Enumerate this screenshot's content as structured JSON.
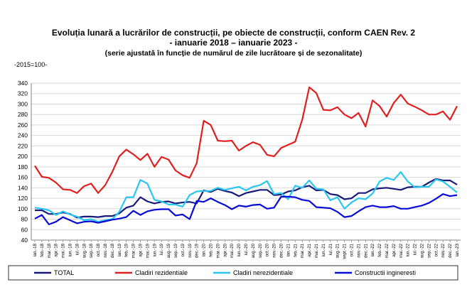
{
  "chart_data": {
    "type": "line",
    "title": "Evoluția lunară a lucrărilor de construcții, pe obiecte de construcții, conform CAEN Rev. 2",
    "subtitle": "- ianuarie 2018 – ianuarie 2023 -",
    "note": "(serie ajustată în funcție de numărul de zile lucrătoare și de sezonalitate)",
    "unit_label": "-2015=100-",
    "ylim": [
      40,
      340
    ],
    "yticks": [
      40,
      60,
      80,
      100,
      120,
      140,
      160,
      180,
      200,
      220,
      240,
      260,
      280,
      300,
      320,
      340
    ],
    "grid": true,
    "legend_position": "bottom",
    "categories": [
      "ian.-18",
      "feb.-18",
      "mar.-18",
      "apr.-18",
      "mai.-18",
      "iun.-18",
      "iul.-18",
      "aug.-18",
      "sep.-18",
      "oct.-18",
      "nov.-18",
      "dec.-18",
      "ian.-19",
      "feb.-19",
      "mar.-19",
      "apr.-19",
      "mai.-19",
      "iun.-19",
      "iul.-19",
      "aug.-19",
      "sep.-19",
      "oct.-19",
      "nov.-19",
      "dec.-19",
      "ian.-20",
      "feb.-20",
      "mar.-20",
      "apr.-20",
      "mai.-20",
      "iun.-20",
      "iul.-20",
      "aug.-20",
      "sep.-20",
      "oct.-20",
      "nov.-20",
      "dec.-20",
      "ian.-21",
      "feb.-21",
      "mar.-21",
      "apr.-21",
      "mai.-21",
      "iun.-21",
      "iul.-21",
      "aug.-21",
      "sept.-21",
      "oct.-21",
      "nov.-21",
      "dec.-21",
      "ian.-22",
      "feb.-22",
      "mar.-22",
      "apr.-22",
      "mai.-22",
      "iun.-22",
      "iul.-22",
      "aug.-22",
      "sep.-22",
      "oct.-22",
      "nov.-22",
      "dec.-22",
      "ian.-23"
    ],
    "xtick_labels": [
      "ian.-18",
      "feb.-18",
      "mar.-18",
      "apr.-18",
      "mai.-18",
      "iun.-18",
      "iul.-18",
      "aug.-18",
      "sep.-18",
      "oct.-18",
      "nov.-18",
      "dec.-18",
      "ian.-19",
      "feb.-19",
      "mar.-19",
      "apr.-19",
      "mai.-19",
      "iun.-19",
      "iul.-19",
      "aug.-19",
      "sep.-19",
      "oct.-19",
      "nov.-19",
      "dec.-19",
      "ian.-20",
      "feb.-20",
      "mar.-20",
      "apr.-20",
      "mai.-20",
      "iun.-20",
      "iul.-20",
      "aug.-20",
      "sep.-20",
      "oct.-20",
      "nov.-20",
      "dec.-20",
      "ian.-21",
      "feb.-21",
      "mar.-21",
      "apr.-21",
      "mai.-21",
      "iun.-21",
      "iul.-21",
      "aug.-21",
      "sept.-21",
      "oct.-21",
      "nov.-21",
      "dec.-21",
      "ian.-22",
      "feb.-22",
      "mar.-22",
      "apr.-22",
      "mai.-22",
      "iun.-22",
      "iul.-22",
      "aug.-22",
      "sep.-22",
      "oct.-22",
      "nov.-22",
      "dec.-22",
      "ian.-23"
    ],
    "series": [
      {
        "name": "TOTAL",
        "color": "#1a1a7a",
        "values": [
          97,
          97,
          90,
          90,
          93,
          90,
          83,
          85,
          85,
          84,
          86,
          86,
          91,
          102,
          106,
          122,
          114,
          110,
          113,
          114,
          110,
          112,
          113,
          110,
          135,
          132,
          138,
          134,
          131,
          124,
          130,
          133,
          136,
          136,
          126,
          127,
          133,
          135,
          141,
          144,
          135,
          136,
          128,
          126,
          118,
          120,
          130,
          130,
          137,
          139,
          140,
          138,
          136,
          141,
          142,
          142,
          150,
          157,
          154,
          154,
          146
        ]
      },
      {
        "name": "Cladiri rezidentiale",
        "color": "#e02020",
        "values": [
          182,
          161,
          159,
          150,
          137,
          136,
          130,
          143,
          148,
          130,
          145,
          170,
          200,
          213,
          204,
          193,
          205,
          180,
          199,
          194,
          173,
          164,
          159,
          187,
          268,
          260,
          230,
          229,
          230,
          211,
          220,
          227,
          222,
          203,
          200,
          216,
          222,
          228,
          270,
          332,
          321,
          289,
          288,
          294,
          280,
          273,
          283,
          257,
          307,
          296,
          276,
          302,
          318,
          301,
          295,
          288,
          280,
          280,
          286,
          270,
          296
        ]
      },
      {
        "name": "Cladiri nerezidentiale",
        "color": "#29c6f0",
        "values": [
          102,
          100,
          97,
          88,
          95,
          89,
          85,
          78,
          80,
          75,
          78,
          80,
          94,
          122,
          122,
          155,
          148,
          117,
          114,
          108,
          108,
          104,
          126,
          133,
          134,
          134,
          140,
          136,
          139,
          142,
          135,
          142,
          145,
          153,
          128,
          130,
          118,
          144,
          140,
          154,
          138,
          137,
          116,
          122,
          100,
          112,
          120,
          118,
          129,
          152,
          159,
          155,
          170,
          152,
          141,
          142,
          142,
          156,
          152,
          142,
          131
        ]
      },
      {
        "name": "Constructii ingineresti",
        "color": "#0a0ad8",
        "values": [
          81,
          88,
          70,
          75,
          84,
          78,
          72,
          75,
          76,
          73,
          76,
          79,
          81,
          84,
          96,
          88,
          95,
          98,
          99,
          99,
          87,
          89,
          80,
          115,
          113,
          120,
          113,
          107,
          99,
          106,
          104,
          107,
          108,
          100,
          102,
          123,
          123,
          122,
          117,
          115,
          103,
          102,
          101,
          94,
          84,
          86,
          95,
          103,
          106,
          103,
          103,
          105,
          100,
          100,
          103,
          106,
          111,
          119,
          128,
          124,
          126
        ]
      }
    ]
  }
}
